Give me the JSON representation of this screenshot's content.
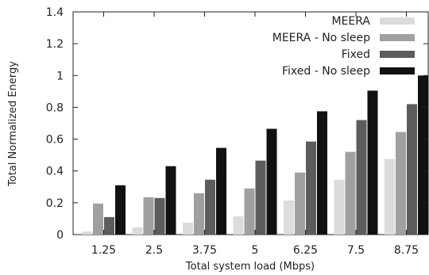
{
  "chart_data": {
    "type": "bar",
    "title": "",
    "xlabel": "Total system load (Mbps)",
    "ylabel": "Total Normalized Energy",
    "categories": [
      "1.25",
      "2.5",
      "3.75",
      "5",
      "6.25",
      "7.5",
      "8.75"
    ],
    "ylim": [
      0,
      1.4
    ],
    "yticks": [
      "0",
      "0.2",
      "0.4",
      "0.6",
      "0.8",
      "1",
      "1.2",
      "1.4"
    ],
    "grid": false,
    "legend_position": "top-right",
    "series": [
      {
        "name": "MEERA",
        "color": "#dcdcdc",
        "values": [
          0.02,
          0.045,
          0.075,
          0.115,
          0.215,
          0.345,
          0.475
        ]
      },
      {
        "name": "MEERA - No sleep",
        "color": "#a0a0a0",
        "values": [
          0.195,
          0.235,
          0.26,
          0.29,
          0.39,
          0.52,
          0.645
        ]
      },
      {
        "name": "Fixed",
        "color": "#5c5c5c",
        "values": [
          0.11,
          0.23,
          0.345,
          0.465,
          0.585,
          0.72,
          0.82
        ]
      },
      {
        "name": "Fixed - No sleep",
        "color": "#111111",
        "values": [
          0.31,
          0.43,
          0.545,
          0.665,
          0.775,
          0.905,
          1.0
        ]
      }
    ]
  }
}
